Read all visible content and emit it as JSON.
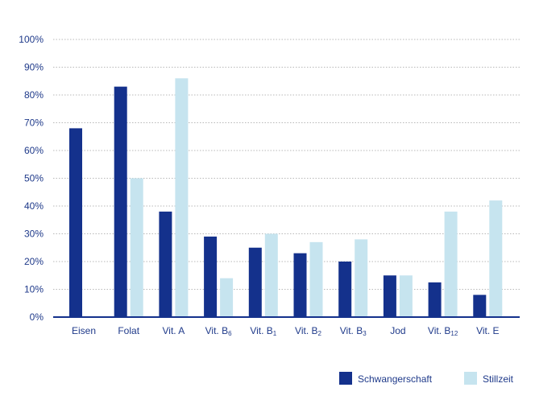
{
  "chart_data": {
    "type": "bar",
    "title": "",
    "xlabel": "",
    "ylabel": "",
    "ylim": [
      0,
      100
    ],
    "y_ticks": [
      "0%",
      "10%",
      "20%",
      "30%",
      "40%",
      "50%",
      "60%",
      "70%",
      "80%",
      "90%",
      "100%"
    ],
    "grid": "horizontal dotted",
    "legend_position": "bottom-right",
    "categories": [
      {
        "main": "Eisen",
        "sub": ""
      },
      {
        "main": "Folat",
        "sub": ""
      },
      {
        "main": "Vit. A",
        "sub": ""
      },
      {
        "main": "Vit. B",
        "sub": "6"
      },
      {
        "main": "Vit. B",
        "sub": "1"
      },
      {
        "main": "Vit. B",
        "sub": "2"
      },
      {
        "main": "Vit. B",
        "sub": "3"
      },
      {
        "main": "Jod",
        "sub": ""
      },
      {
        "main": "Vit. B",
        "sub": "12"
      },
      {
        "main": "Vit. E",
        "sub": ""
      }
    ],
    "series": [
      {
        "name": "Schwangerschaft",
        "color": "#14318c",
        "values": [
          68,
          83,
          38,
          29,
          25,
          23,
          20,
          15,
          12.5,
          8
        ]
      },
      {
        "name": "Stillzeit",
        "color": "#c6e4ef",
        "values": [
          null,
          50,
          86,
          14,
          30,
          27,
          28,
          15,
          38,
          42
        ]
      }
    ],
    "colors": {
      "axis": "#14318c",
      "text": "#1f3a8a",
      "grid": "#b8b8b8"
    }
  }
}
